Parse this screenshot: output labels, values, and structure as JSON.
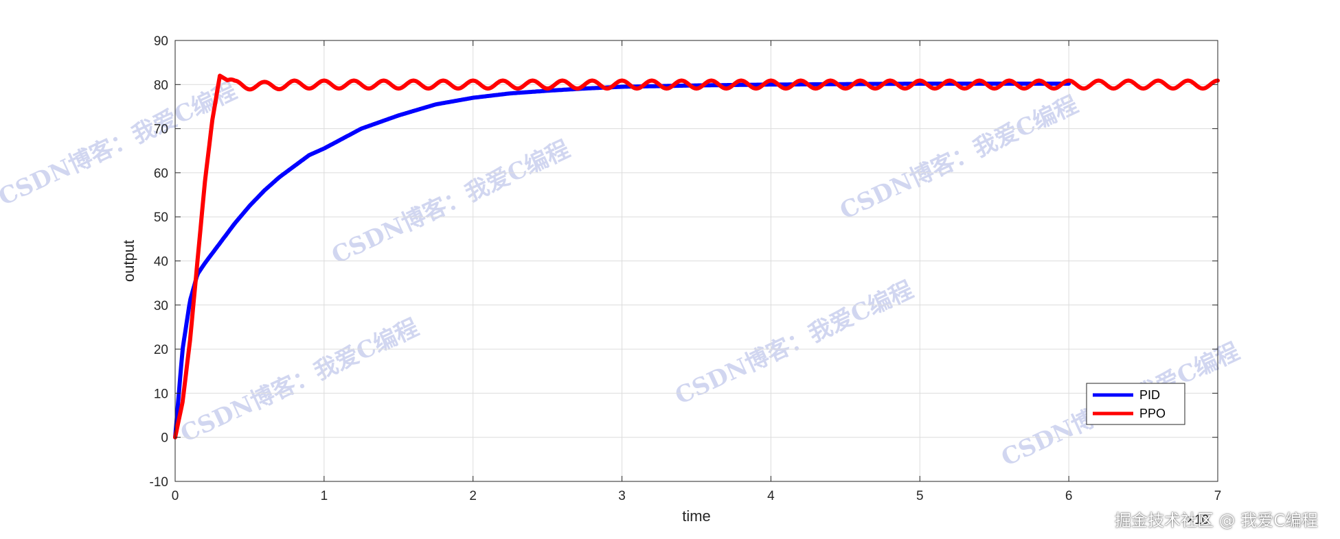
{
  "chart_data": {
    "type": "line",
    "xlabel": "time",
    "ylabel": "output",
    "x_exponent_label": "×10",
    "xlim": [
      0,
      7
    ],
    "ylim": [
      -10,
      90
    ],
    "xticks": [
      0,
      1,
      2,
      3,
      4,
      5,
      6,
      7
    ],
    "yticks": [
      -10,
      0,
      10,
      20,
      30,
      40,
      50,
      60,
      70,
      80,
      90
    ],
    "grid": true,
    "legend_position": "lower-right",
    "series": [
      {
        "name": "PID",
        "color": "#0000ff",
        "x": [
          0,
          0.05,
          0.1,
          0.15,
          0.2,
          0.3,
          0.4,
          0.5,
          0.6,
          0.7,
          0.8,
          0.9,
          1.0,
          1.25,
          1.5,
          1.75,
          2.0,
          2.25,
          2.5,
          2.75,
          3.0,
          3.5,
          4.0,
          4.5,
          5.0,
          5.5,
          6.0
        ],
        "y": [
          0,
          20,
          31,
          37,
          39.5,
          44,
          48.5,
          52.5,
          56,
          59,
          61.5,
          64,
          65.5,
          70,
          73,
          75.5,
          77,
          78,
          78.6,
          79.1,
          79.5,
          79.8,
          80,
          80.1,
          80.2,
          80.2,
          80.2
        ]
      },
      {
        "name": "PPO",
        "color": "#ff0000",
        "x": [
          0,
          0.05,
          0.1,
          0.15,
          0.2,
          0.25,
          0.3,
          0.35,
          0.4,
          0.5,
          0.6,
          0.8,
          1.0,
          1.5,
          2.0,
          3.0,
          4.0,
          5.0,
          6.0,
          7.0
        ],
        "y": [
          0,
          8,
          22,
          40,
          58,
          72,
          82,
          81,
          80,
          79.8,
          79.7,
          80,
          80,
          80,
          80,
          80,
          80,
          80,
          80,
          80
        ],
        "oscillation": {
          "amplitude": 0.9,
          "period": 0.2,
          "from_x": 0.35
        }
      }
    ]
  },
  "watermarks": [
    "CSDN博客：我爱C编程",
    "CSDN博客：我爱C编程",
    "CSDN博客：我爱C编程",
    "CSDN博客：我爱C编程",
    "CSDN博客：我爱C编程",
    "CSDN博客：我爱C编程"
  ],
  "site_watermark": "掘金技术社区 @ 我爱C编程"
}
